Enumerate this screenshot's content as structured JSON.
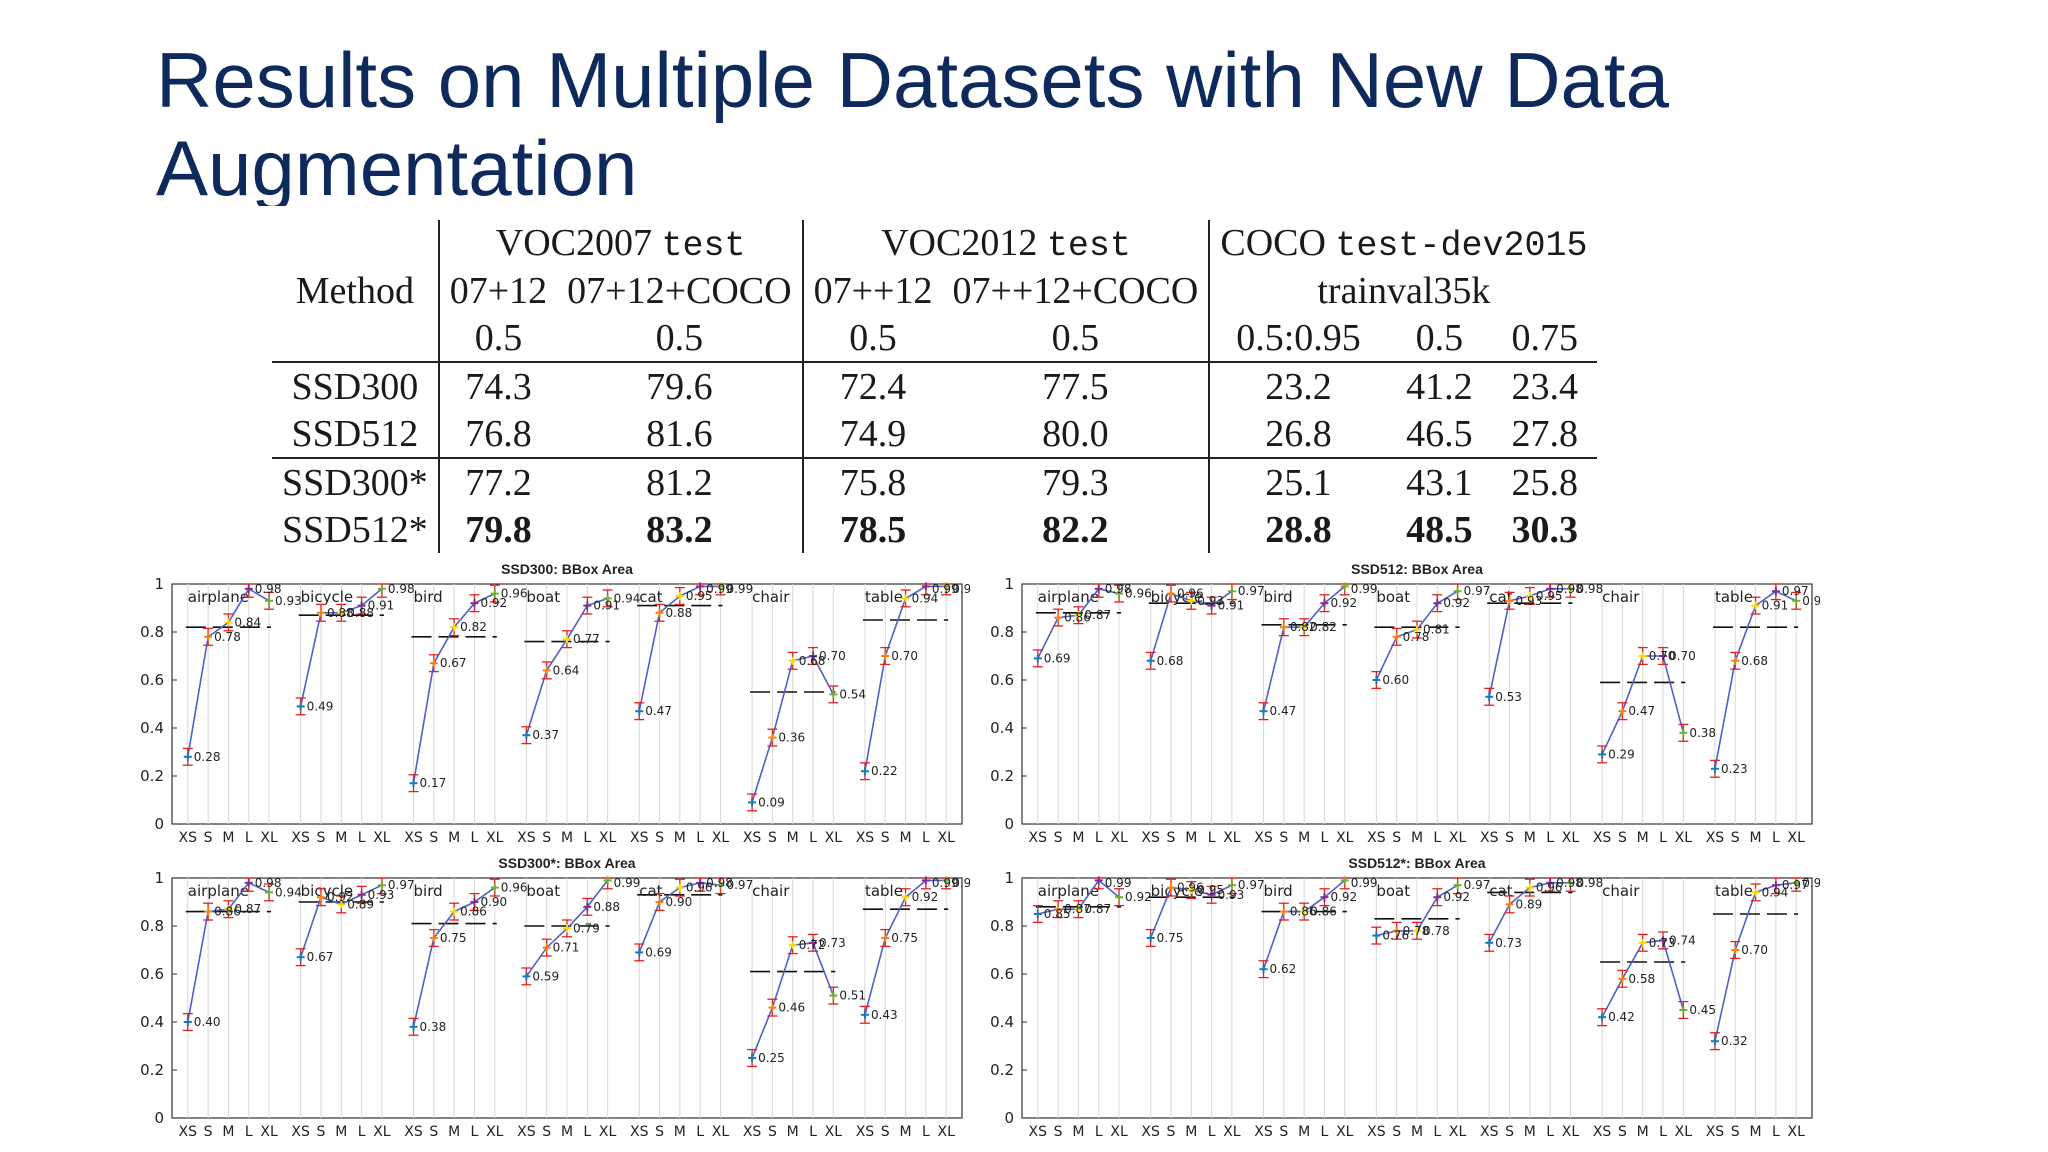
{
  "slide": {
    "title": "Results on Multiple Datasets with New Data Augmentation"
  },
  "table": {
    "header_row1": {
      "method": "",
      "voc2007": "VOC2007",
      "voc2007_mono": "test",
      "voc2012": "VOC2012",
      "voc2012_mono": "test",
      "coco": "COCO",
      "coco_mono": "test-dev2015"
    },
    "header_row2": {
      "method": "Method",
      "c1": "07+12",
      "c2": "07+12+COCO",
      "c3": "07++12",
      "c4": "07++12+COCO",
      "coco": "trainval35k"
    },
    "header_row3": {
      "c1": "0.5",
      "c2": "0.5",
      "c3": "0.5",
      "c4": "0.5",
      "c5": "0.5:0.95",
      "c6": "0.5",
      "c7": "0.75"
    },
    "rows": [
      {
        "method": "SSD300",
        "values": [
          "74.3",
          "79.6",
          "72.4",
          "77.5",
          "23.2",
          "41.2",
          "23.4"
        ]
      },
      {
        "method": "SSD512",
        "values": [
          "76.8",
          "81.6",
          "74.9",
          "80.0",
          "26.8",
          "46.5",
          "27.8"
        ]
      },
      {
        "method": "SSD300*",
        "values": [
          "77.2",
          "81.2",
          "75.8",
          "79.3",
          "25.1",
          "43.1",
          "25.8"
        ]
      },
      {
        "method": "SSD512*",
        "values": [
          "79.8",
          "83.2",
          "78.5",
          "82.2",
          "28.8",
          "48.5",
          "30.3"
        ]
      }
    ]
  },
  "chart_data": [
    {
      "type": "line",
      "title": "SSD300: BBox Area",
      "ylim": [
        0,
        1
      ],
      "y_ticks": [
        "0",
        "0.2",
        "0.4",
        "0.6",
        "0.8",
        "1"
      ],
      "x_ticks": [
        "XS",
        "S",
        "M",
        "L",
        "XL"
      ],
      "categories": [
        {
          "name": "airplane",
          "values": [
            0.28,
            0.78,
            0.84,
            0.98,
            0.93
          ],
          "labels": [
            "0.28",
            "0.78",
            "0.84",
            "0.98",
            "0.93"
          ],
          "avg": 0.82
        },
        {
          "name": "bicycle",
          "values": [
            0.49,
            0.88,
            0.88,
            0.91,
            0.98
          ],
          "labels": [
            "0.49",
            "0.88",
            "0.88",
            "0.91",
            "0.98"
          ],
          "avg": 0.87
        },
        {
          "name": "bird",
          "values": [
            0.17,
            0.67,
            0.82,
            0.92,
            0.96
          ],
          "labels": [
            "0.17",
            "0.67",
            "0.82",
            "0.92",
            "0.96"
          ],
          "avg": 0.78
        },
        {
          "name": "boat",
          "values": [
            0.37,
            0.64,
            0.77,
            0.91,
            0.94
          ],
          "labels": [
            "0.37",
            "0.64",
            "0.77",
            "0.91",
            "0.94"
          ],
          "avg": 0.76
        },
        {
          "name": "cat",
          "values": [
            0.47,
            0.88,
            0.95,
            0.99,
            0.99
          ],
          "labels": [
            "0.47",
            "0.88",
            "0.95",
            "0.99",
            "0.99"
          ],
          "avg": 0.91
        },
        {
          "name": "chair",
          "values": [
            0.09,
            0.36,
            0.68,
            0.7,
            0.54
          ],
          "labels": [
            "0.09",
            "0.36",
            "0.68",
            "0.70",
            "0.54"
          ],
          "avg": 0.55
        },
        {
          "name": "table",
          "values": [
            0.22,
            0.7,
            0.94,
            0.99,
            0.99
          ],
          "labels": [
            "0.22",
            "0.70",
            "0.94",
            "0.99",
            "0.99"
          ],
          "avg": 0.85
        }
      ]
    },
    {
      "type": "line",
      "title": "SSD512: BBox Area",
      "ylim": [
        0,
        1
      ],
      "y_ticks": [
        "0",
        "0.2",
        "0.4",
        "0.6",
        "0.8",
        "1"
      ],
      "x_ticks": [
        "XS",
        "S",
        "M",
        "L",
        "XL"
      ],
      "categories": [
        {
          "name": "airplane",
          "values": [
            0.69,
            0.86,
            0.87,
            0.98,
            0.96
          ],
          "labels": [
            "0.69",
            "0.86",
            "0.87",
            "0.98",
            "0.96"
          ],
          "avg": 0.88
        },
        {
          "name": "bicycle",
          "values": [
            0.68,
            0.96,
            0.93,
            0.91,
            0.97
          ],
          "labels": [
            "0.68",
            "0.96",
            "0.93",
            "0.91",
            "0.97"
          ],
          "avg": 0.92
        },
        {
          "name": "bird",
          "values": [
            0.47,
            0.82,
            0.82,
            0.92,
            0.99
          ],
          "labels": [
            "0.47",
            "0.82",
            "0.82",
            "0.92",
            "0.99"
          ],
          "avg": 0.83
        },
        {
          "name": "boat",
          "values": [
            0.6,
            0.78,
            0.81,
            0.92,
            0.97
          ],
          "labels": [
            "0.60",
            "0.78",
            "0.81",
            "0.92",
            "0.97"
          ],
          "avg": 0.82
        },
        {
          "name": "cat",
          "values": [
            0.53,
            0.93,
            0.95,
            0.98,
            0.98
          ],
          "labels": [
            "0.53",
            "0.93",
            "0.95",
            "0.98",
            "0.98"
          ],
          "avg": 0.92
        },
        {
          "name": "chair",
          "values": [
            0.29,
            0.47,
            0.7,
            0.7,
            0.38
          ],
          "labels": [
            "0.29",
            "0.47",
            "0.70",
            "0.70",
            "0.38"
          ],
          "avg": 0.59
        },
        {
          "name": "table",
          "values": [
            0.23,
            0.68,
            0.91,
            0.97,
            0.93
          ],
          "labels": [
            "0.23",
            "0.68",
            "0.91",
            "0.97",
            "0.93"
          ],
          "avg": 0.82
        }
      ]
    },
    {
      "type": "line",
      "title": "SSD300*: BBox Area",
      "ylim": [
        0,
        1
      ],
      "y_ticks": [
        "0",
        "0.2",
        "0.4",
        "0.6",
        "0.8",
        "1"
      ],
      "x_ticks": [
        "XS",
        "S",
        "M",
        "L",
        "XL"
      ],
      "categories": [
        {
          "name": "airplane",
          "values": [
            0.4,
            0.86,
            0.87,
            0.98,
            0.94
          ],
          "labels": [
            "0.40",
            "0.86",
            "0.87",
            "0.98",
            "0.94"
          ],
          "avg": 0.86
        },
        {
          "name": "bicycle",
          "values": [
            0.67,
            0.92,
            0.89,
            0.93,
            0.97
          ],
          "labels": [
            "0.67",
            "0.92",
            "0.89",
            "0.93",
            "0.97"
          ],
          "avg": 0.9
        },
        {
          "name": "bird",
          "values": [
            0.38,
            0.75,
            0.86,
            0.9,
            0.96
          ],
          "labels": [
            "0.38",
            "0.75",
            "0.86",
            "0.90",
            "0.96"
          ],
          "avg": 0.81
        },
        {
          "name": "boat",
          "values": [
            0.59,
            0.71,
            0.79,
            0.88,
            0.99
          ],
          "labels": [
            "0.59",
            "0.71",
            "0.79",
            "0.88",
            "0.99"
          ],
          "avg": 0.8
        },
        {
          "name": "cat",
          "values": [
            0.69,
            0.9,
            0.96,
            0.98,
            0.97
          ],
          "labels": [
            "0.69",
            "0.90",
            "0.96",
            "0.98",
            "0.97"
          ],
          "avg": 0.93
        },
        {
          "name": "chair",
          "values": [
            0.25,
            0.46,
            0.72,
            0.73,
            0.51
          ],
          "labels": [
            "0.25",
            "0.46",
            "0.72",
            "0.73",
            "0.51"
          ],
          "avg": 0.61
        },
        {
          "name": "table",
          "values": [
            0.43,
            0.75,
            0.92,
            0.99,
            0.99
          ],
          "labels": [
            "0.43",
            "0.75",
            "0.92",
            "0.99",
            "0.99"
          ],
          "avg": 0.87
        }
      ]
    },
    {
      "type": "line",
      "title": "SSD512*: BBox Area",
      "ylim": [
        0,
        1
      ],
      "y_ticks": [
        "0",
        "0.2",
        "0.4",
        "0.6",
        "0.8",
        "1"
      ],
      "x_ticks": [
        "XS",
        "S",
        "M",
        "L",
        "XL"
      ],
      "categories": [
        {
          "name": "airplane",
          "values": [
            0.85,
            0.87,
            0.87,
            0.99,
            0.92
          ],
          "labels": [
            "0.85",
            "0.87",
            "0.87",
            "0.99",
            "0.92"
          ],
          "avg": 0.88
        },
        {
          "name": "bicycle",
          "values": [
            0.75,
            0.96,
            0.95,
            0.93,
            0.97
          ],
          "labels": [
            "0.75",
            "0.96",
            "0.95",
            "0.93",
            "0.97"
          ],
          "avg": 0.92
        },
        {
          "name": "bird",
          "values": [
            0.62,
            0.86,
            0.86,
            0.92,
            0.99
          ],
          "labels": [
            "0.62",
            "0.86",
            "0.86",
            "0.92",
            "0.99"
          ],
          "avg": 0.86
        },
        {
          "name": "boat",
          "values": [
            0.76,
            0.78,
            0.78,
            0.92,
            0.97
          ],
          "labels": [
            "0.76",
            "0.78",
            "0.78",
            "0.92",
            "0.97"
          ],
          "avg": 0.83
        },
        {
          "name": "cat",
          "values": [
            0.73,
            0.89,
            0.96,
            0.98,
            0.98
          ],
          "labels": [
            "0.73",
            "0.89",
            "0.96",
            "0.98",
            "0.98"
          ],
          "avg": 0.94
        },
        {
          "name": "chair",
          "values": [
            0.42,
            0.58,
            0.73,
            0.74,
            0.45
          ],
          "labels": [
            "0.42",
            "0.58",
            "0.73",
            "0.74",
            "0.45"
          ],
          "avg": 0.65
        },
        {
          "name": "table",
          "values": [
            0.32,
            0.7,
            0.94,
            0.97,
            0.98
          ],
          "labels": [
            "0.32",
            "0.70",
            "0.94",
            "0.97",
            "0.98"
          ],
          "avg": 0.85
        }
      ]
    }
  ]
}
